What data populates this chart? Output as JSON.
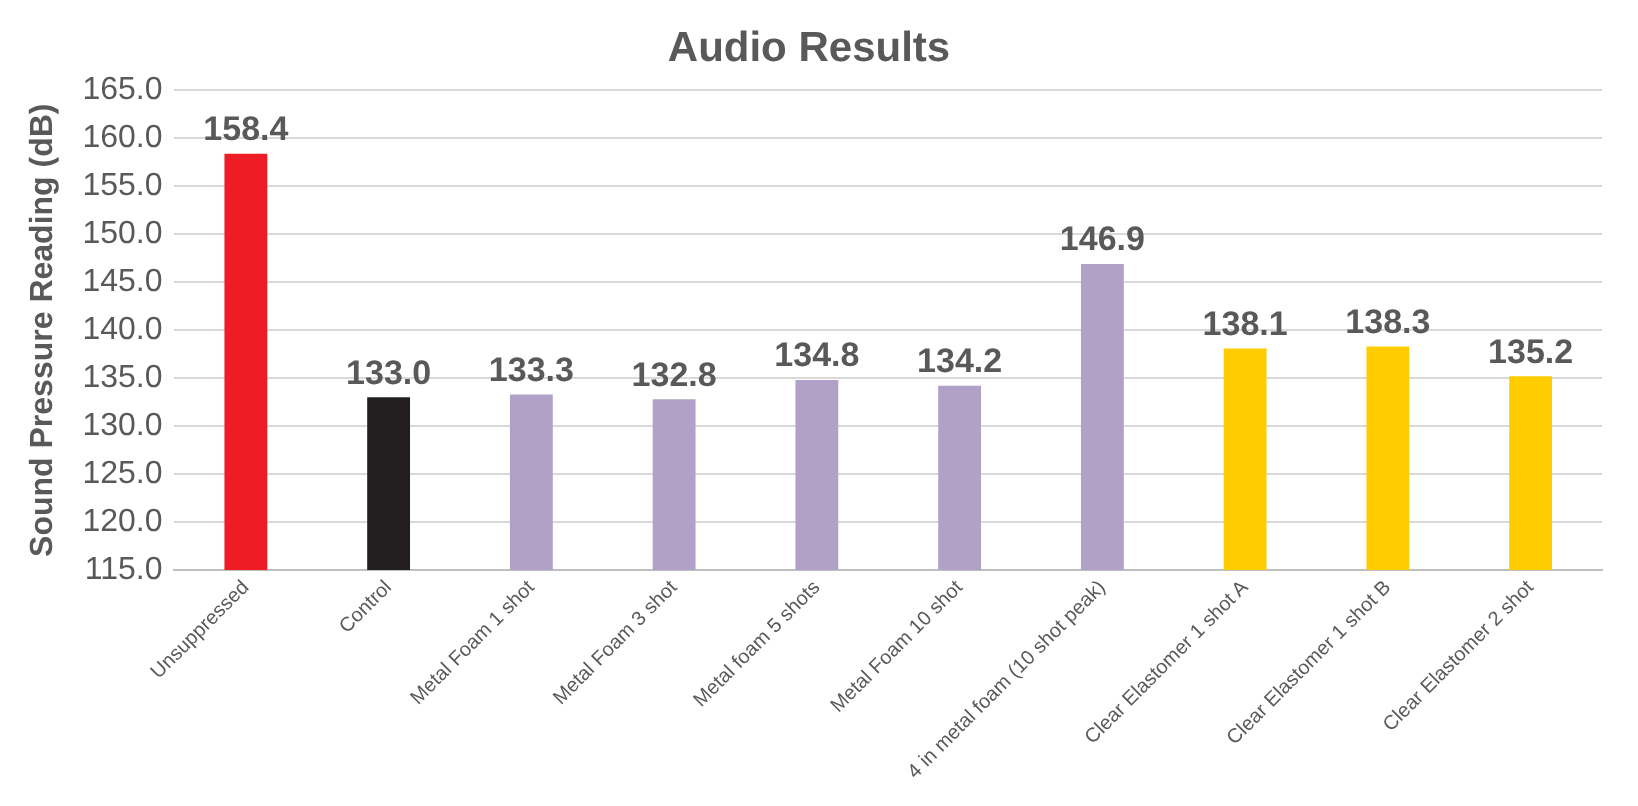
{
  "chart_data": {
    "type": "bar",
    "title": "Audio Results",
    "ylabel": "Sound Pressure Reading (dB)",
    "categories": [
      "Unsuppressed",
      "Control",
      "Metal Foam 1 shot",
      "Metal Foam 3 shot",
      "Metal foam 5 shots",
      "Metal Foam 10 shot",
      "4 in metal foam (10 shot peak)",
      "Clear Elastomer 1 shot A",
      "Clear Elastomer 1 shot B",
      "Clear Elastomer 2 shot"
    ],
    "values": [
      158.4,
      133.0,
      133.3,
      132.8,
      134.8,
      134.2,
      146.9,
      138.1,
      138.3,
      135.2
    ],
    "value_labels": [
      "158.4",
      "133.0",
      "133.3",
      "132.8",
      "134.8",
      "134.2",
      "146.9",
      "138.1",
      "138.3",
      "135.2"
    ],
    "colors": [
      "#ee1c25",
      "#231f20",
      "#b1a0c7",
      "#b1a0c7",
      "#b1a0c7",
      "#b1a0c7",
      "#b1a0c7",
      "#ffcc00",
      "#ffcc00",
      "#ffcc00"
    ],
    "ylim": [
      115,
      165
    ],
    "yticks": [
      {
        "value": 115,
        "label": "115.0"
      },
      {
        "value": 120,
        "label": "120.0"
      },
      {
        "value": 125,
        "label": "125.0"
      },
      {
        "value": 130,
        "label": "130.0"
      },
      {
        "value": 135,
        "label": "135.0"
      },
      {
        "value": 140,
        "label": "140.0"
      },
      {
        "value": 145,
        "label": "145.0"
      },
      {
        "value": 150,
        "label": "150.0"
      },
      {
        "value": 155,
        "label": "155.0"
      },
      {
        "value": 160,
        "label": "160.0"
      },
      {
        "value": 165,
        "label": "165.0"
      }
    ],
    "grid": "y",
    "legend": false
  }
}
